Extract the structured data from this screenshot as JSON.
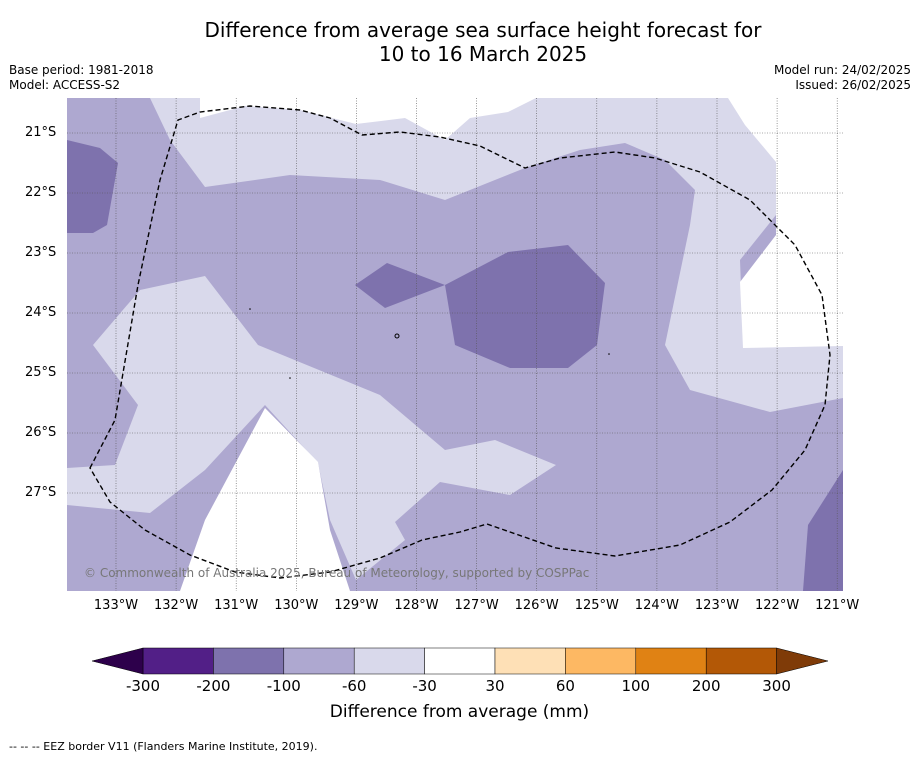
{
  "title_line1": "Difference from average sea surface height forecast for",
  "title_line2": "10 to 16 March 2025",
  "base_period": "Base period: 1981-2018",
  "model": "Model: ACCESS-S2",
  "model_run": "Model run: 24/02/2025",
  "issued": "Issued: 26/02/2025",
  "copyright": "© Commonwealth of Australia 2025, Bureau of Meteorology, supported by COSPPac",
  "lat_labels": [
    "21°S",
    "22°S",
    "23°S",
    "24°S",
    "25°S",
    "26°S",
    "27°S"
  ],
  "lon_labels": [
    "133°W",
    "132°W",
    "131°W",
    "130°W",
    "129°W",
    "128°W",
    "127°W",
    "126°W",
    "125°W",
    "124°W",
    "123°W",
    "122°W",
    "121°W"
  ],
  "colorbar": {
    "title": "Difference from average (mm)",
    "ticks": [
      "-300",
      "-200",
      "-100",
      "-60",
      "-30",
      "30",
      "60",
      "100",
      "200",
      "300"
    ],
    "colors": [
      "#521f87",
      "#7e72ad",
      "#aea8d0",
      "#d9d9eb",
      "#ffffff",
      "#fee0b6",
      "#fdb863",
      "#e08214",
      "#b35806"
    ],
    "under_color": "#2d004b",
    "over_color": "#7f3b08"
  },
  "footer": "-- -- -- EEZ border V11 (Flanders Marine Institute, 2019)."
}
